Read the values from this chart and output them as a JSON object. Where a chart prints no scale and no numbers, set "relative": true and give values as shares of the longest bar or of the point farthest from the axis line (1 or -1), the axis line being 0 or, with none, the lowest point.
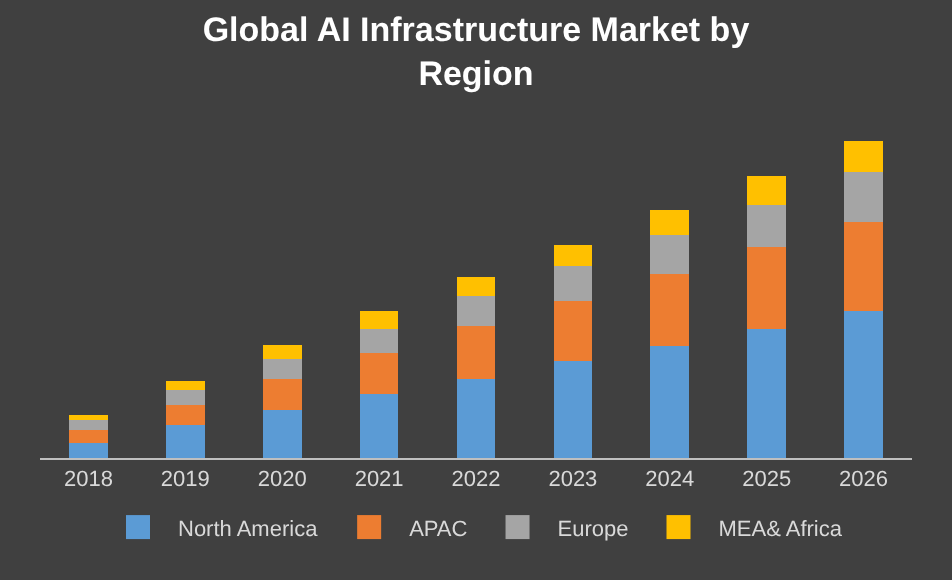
{
  "chart_data": {
    "type": "bar",
    "title": "Global AI Infrastructure Market by Region",
    "categories": [
      "2018",
      "2019",
      "2020",
      "2021",
      "2022",
      "2023",
      "2024",
      "2025",
      "2026"
    ],
    "stacked": true,
    "relative": true,
    "legend": "bottom",
    "series": [
      {
        "name": "North America",
        "color": "#5b9bd5",
        "values": [
          0.047,
          0.104,
          0.151,
          0.203,
          0.25,
          0.307,
          0.354,
          0.406,
          0.464
        ]
      },
      {
        "name": "APAC",
        "color": "#ed7d31",
        "values": [
          0.042,
          0.063,
          0.099,
          0.128,
          0.167,
          0.188,
          0.227,
          0.26,
          0.281
        ]
      },
      {
        "name": "Europe",
        "color": "#a5a5a5",
        "values": [
          0.031,
          0.047,
          0.063,
          0.076,
          0.094,
          0.109,
          0.122,
          0.13,
          0.156
        ]
      },
      {
        "name": "MEA& Africa",
        "color": "#ffc000",
        "values": [
          0.016,
          0.029,
          0.042,
          0.055,
          0.06,
          0.068,
          0.078,
          0.094,
          0.099
        ]
      }
    ]
  }
}
